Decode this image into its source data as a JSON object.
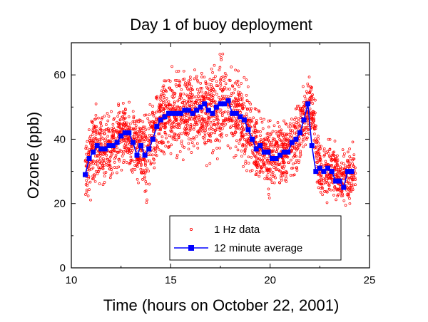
{
  "chart_data": {
    "type": "scatter",
    "title": "Day 1 of buoy deployment",
    "xlabel": "Time (hours on October 22, 2001)",
    "ylabel": "Ozone (ppb)",
    "xlim": [
      10,
      25
    ],
    "ylim": [
      0,
      70
    ],
    "xticks": [
      10,
      15,
      20,
      25
    ],
    "yticks": [
      0,
      20,
      40,
      60
    ],
    "x_tick_labels": [
      "10",
      "15",
      "20",
      "25"
    ],
    "y_tick_labels": [
      "0",
      "20",
      "40",
      "60"
    ],
    "legend": {
      "position": "bottom-right",
      "items": [
        "1 Hz data",
        "12 minute average"
      ]
    },
    "colors": {
      "raw": "#ff0000",
      "average": "#0000ff"
    },
    "grid": false,
    "series": [
      {
        "name": "12 minute average",
        "marker": "square",
        "x": [
          10.7,
          10.9,
          11.1,
          11.3,
          11.5,
          11.7,
          11.9,
          12.1,
          12.3,
          12.5,
          12.7,
          12.9,
          13.1,
          13.3,
          13.5,
          13.7,
          13.9,
          14.1,
          14.3,
          14.5,
          14.7,
          14.9,
          15.1,
          15.3,
          15.5,
          15.7,
          15.9,
          16.1,
          16.3,
          16.5,
          16.7,
          16.9,
          17.1,
          17.3,
          17.5,
          17.7,
          17.9,
          18.1,
          18.3,
          18.5,
          18.7,
          18.9,
          19.1,
          19.3,
          19.5,
          19.7,
          19.9,
          20.1,
          20.3,
          20.5,
          20.7,
          20.9,
          21.1,
          21.3,
          21.5,
          21.7,
          21.9,
          22.1,
          22.3,
          22.5,
          22.7,
          22.9,
          23.1,
          23.3,
          23.5,
          23.7,
          23.9,
          24.1
        ],
        "y": [
          29,
          34,
          36,
          38,
          37,
          37,
          38,
          38,
          39,
          41,
          42,
          42,
          39,
          35,
          38,
          35,
          37,
          40,
          44,
          46,
          47,
          48,
          48,
          48,
          48,
          49,
          49,
          48,
          49,
          50,
          51,
          49,
          48,
          50,
          51,
          51,
          52,
          48,
          48,
          47,
          46,
          43,
          40,
          37,
          38,
          36,
          36,
          34,
          34,
          35,
          36,
          36,
          39,
          40,
          42,
          46,
          51,
          38,
          30,
          31,
          30,
          31,
          30,
          27,
          27,
          25,
          30,
          30
        ]
      },
      {
        "name": "1 Hz data",
        "marker": "open-circle",
        "x": [
          10.8,
          11.1,
          11.4,
          11.7,
          12.0,
          12.3,
          12.6,
          12.9,
          13.2,
          13.5,
          13.8,
          14.1,
          14.4,
          14.7,
          15.0,
          15.3,
          15.6,
          15.9,
          16.2,
          16.5,
          16.8,
          17.1,
          17.4,
          17.7,
          18.0,
          18.3,
          18.6,
          18.9,
          19.2,
          19.5,
          19.8,
          20.1,
          20.4,
          20.7,
          21.0,
          21.3,
          21.6,
          21.9,
          22.1,
          22.4,
          22.7,
          23.0,
          23.3,
          23.6,
          23.9,
          24.2
        ],
        "y": [
          31,
          37,
          37,
          38,
          38,
          40,
          42,
          41,
          38,
          38,
          34,
          42,
          45,
          48,
          48,
          48,
          49,
          49,
          49,
          50,
          49,
          49,
          50,
          52,
          49,
          48,
          46,
          44,
          39,
          37,
          36,
          34,
          35,
          36,
          38,
          40,
          43,
          48,
          51,
          33,
          30,
          31,
          29,
          27,
          28,
          30
        ],
        "spread": [
          5,
          7,
          6,
          6,
          6,
          6,
          6,
          6,
          6,
          6,
          8,
          6,
          7,
          7,
          7,
          7,
          8,
          8,
          8,
          8,
          8,
          8,
          8,
          8,
          8,
          8,
          7,
          7,
          7,
          6,
          6,
          6,
          6,
          6,
          6,
          6,
          6,
          6,
          5,
          5,
          5,
          5,
          5,
          5,
          5,
          5
        ]
      }
    ]
  }
}
